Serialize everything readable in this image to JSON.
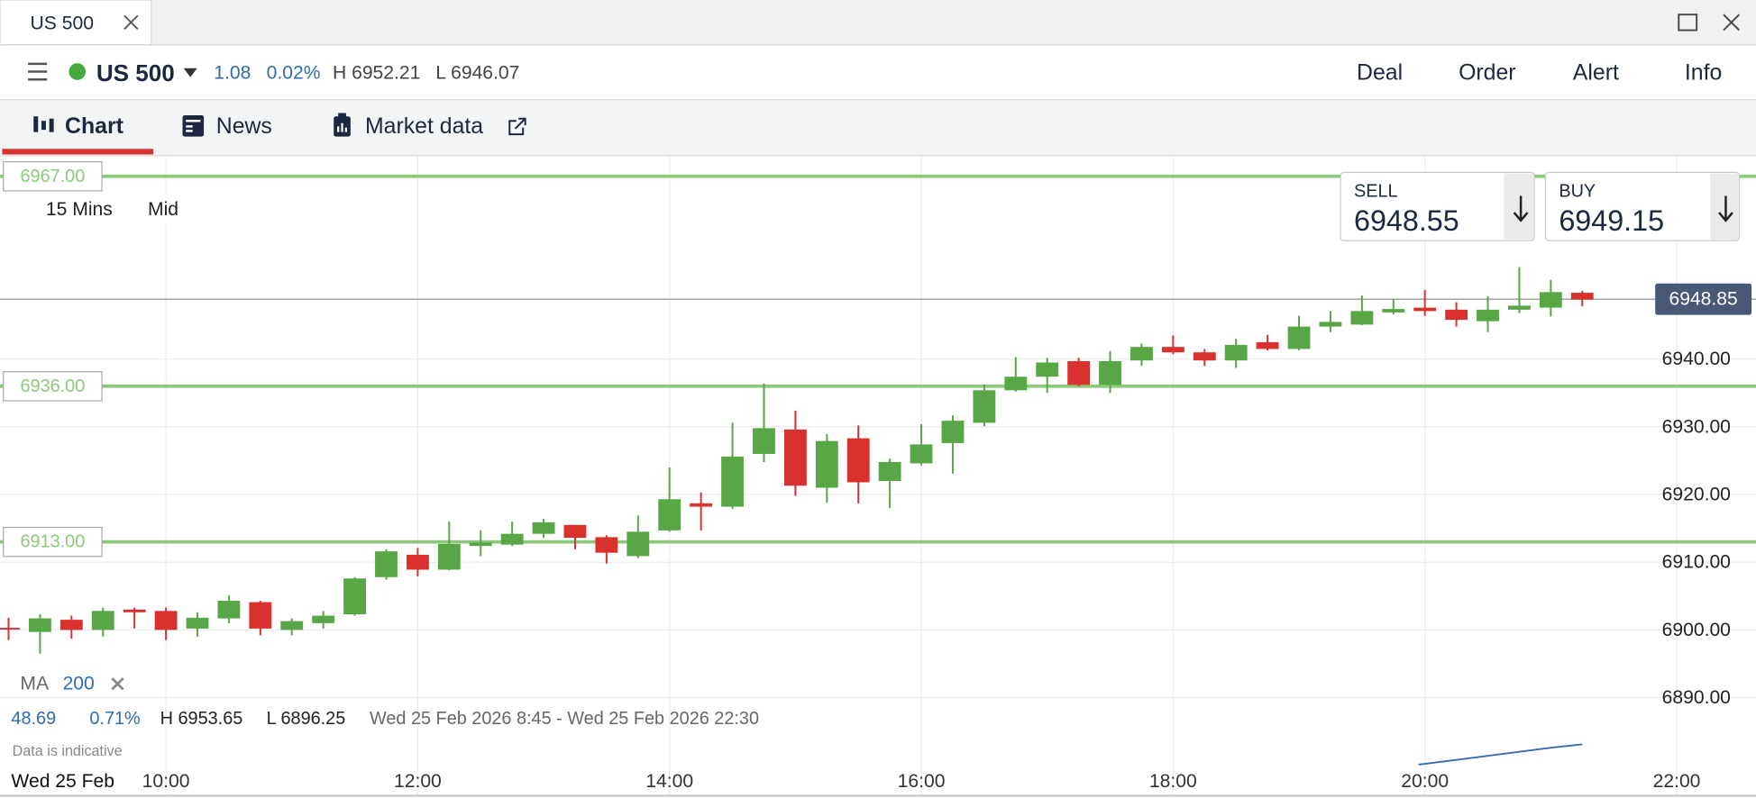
{
  "window": {
    "tab": "US 500"
  },
  "header": {
    "instrument": "US 500",
    "change": "1.08",
    "change_pct": "0.02%",
    "high": "H 6952.21",
    "low": "L 6946.07",
    "actions": [
      "Deal",
      "Order",
      "Alert",
      "Info"
    ]
  },
  "tabs": [
    "Chart",
    "News",
    "Market data"
  ],
  "quote": {
    "sell_label": "SELL",
    "sell": "6948.55",
    "buy_label": "BUY",
    "buy": "6949.15"
  },
  "chart_data": {
    "type": "candlestick",
    "interval": "15 Mins",
    "price_type": "Mid",
    "x": [
      8.75,
      9,
      9.25,
      9.5,
      9.75,
      10,
      10.25,
      10.5,
      10.75,
      11,
      11.25,
      11.5,
      11.75,
      12,
      12.25,
      12.5,
      12.75,
      13,
      13.25,
      13.5,
      13.75,
      14,
      14.25,
      14.5,
      14.75,
      15,
      15.25,
      15.5,
      15.75,
      16,
      16.25,
      16.5,
      16.75,
      17,
      17.25,
      17.5,
      17.75,
      18,
      18.25,
      18.5,
      18.75,
      19,
      19.25,
      19.5,
      19.75,
      20,
      20.25,
      20.5,
      20.75,
      21,
      21.25
    ],
    "open": [
      6900.3,
      6899.7,
      6901.5,
      6900.0,
      6903.0,
      6902.8,
      6900.2,
      6901.7,
      6904.1,
      6900.0,
      6901.0,
      6902.3,
      6907.8,
      6911.1,
      6908.9,
      6912.4,
      6912.6,
      6914.2,
      6915.5,
      6913.7,
      6910.9,
      6914.7,
      6918.7,
      6918.2,
      6926.0,
      6929.6,
      6921.0,
      6928.3,
      6922.0,
      6924.6,
      6927.6,
      6930.6,
      6935.4,
      6937.4,
      6939.7,
      6936.2,
      6939.8,
      6941.8,
      6941.0,
      6939.8,
      6942.5,
      6941.5,
      6944.8,
      6945.1,
      6946.9,
      6947.6,
      6947.3,
      6945.6,
      6947.3,
      6947.6,
      6949.8
    ],
    "high": [
      6901.8,
      6902.3,
      6902.1,
      6903.3,
      6903.3,
      6903.3,
      6902.6,
      6905.1,
      6904.3,
      6901.7,
      6902.8,
      6907.8,
      6911.9,
      6912.1,
      6916.0,
      6914.7,
      6916.0,
      6916.4,
      6915.5,
      6914.0,
      6916.9,
      6924.0,
      6920.3,
      6930.6,
      6936.4,
      6932.4,
      6928.9,
      6930.2,
      6925.3,
      6930.4,
      6931.7,
      6936.2,
      6940.3,
      6940.2,
      6940.2,
      6941.2,
      6942.3,
      6943.5,
      6941.5,
      6943.0,
      6943.6,
      6946.4,
      6947.1,
      6949.4,
      6948.9,
      6950.2,
      6948.4,
      6949.3,
      6953.6,
      6951.7,
      6950.1
    ],
    "low": [
      6898.5,
      6896.5,
      6898.7,
      6899.0,
      6900.2,
      6898.5,
      6899.0,
      6901.0,
      6899.2,
      6899.2,
      6900.2,
      6902.1,
      6907.4,
      6907.9,
      6908.8,
      6910.9,
      6912.4,
      6913.6,
      6911.9,
      6909.8,
      6910.6,
      6914.5,
      6914.7,
      6917.9,
      6924.8,
      6919.8,
      6918.8,
      6918.7,
      6918.0,
      6924.3,
      6923.1,
      6930.1,
      6935.2,
      6935.0,
      6936.0,
      6935.0,
      6939.0,
      6940.7,
      6939.0,
      6938.7,
      6941.3,
      6941.3,
      6944.0,
      6945.0,
      6946.6,
      6946.4,
      6944.8,
      6944.0,
      6946.8,
      6946.3,
      6947.8
    ],
    "close": [
      6900.1,
      6901.7,
      6900.0,
      6902.8,
      6902.6,
      6900.0,
      6901.8,
      6904.3,
      6900.2,
      6901.3,
      6902.1,
      6907.6,
      6911.6,
      6908.9,
      6912.7,
      6912.9,
      6914.2,
      6915.9,
      6913.6,
      6911.4,
      6914.5,
      6919.3,
      6918.2,
      6925.6,
      6929.8,
      6921.3,
      6927.9,
      6921.8,
      6924.8,
      6927.4,
      6930.9,
      6935.4,
      6937.4,
      6939.5,
      6936.2,
      6939.7,
      6941.8,
      6941.0,
      6939.8,
      6942.1,
      6941.5,
      6944.8,
      6945.5,
      6947.1,
      6947.4,
      6947.1,
      6945.8,
      6947.3,
      6947.9,
      6949.9,
      6948.8
    ],
    "up_color": "#58a646",
    "down_color": "#d9322e",
    "xlim": [
      8.682,
      22.63
    ],
    "xticks": [
      {
        "value": 10,
        "label": "10:00"
      },
      {
        "value": 12,
        "label": "12:00"
      },
      {
        "value": 14,
        "label": "14:00"
      },
      {
        "value": 16,
        "label": "16:00"
      },
      {
        "value": 18,
        "label": "18:00"
      },
      {
        "value": 20,
        "label": "20:00"
      },
      {
        "value": 22,
        "label": "22:00"
      }
    ],
    "ylim": [
      6879.8,
      6969.9
    ],
    "yticks": [
      {
        "value": 6890,
        "label": "6890.00"
      },
      {
        "value": 6900,
        "label": "6900.00"
      },
      {
        "value": 6910,
        "label": "6910.00"
      },
      {
        "value": 6920,
        "label": "6920.00"
      },
      {
        "value": 6930,
        "label": "6930.00"
      },
      {
        "value": 6940,
        "label": "6940.00"
      }
    ],
    "grid": true,
    "date_label": "Wed 25 Feb",
    "levels": [
      {
        "value": 6967,
        "label": "6967.00"
      },
      {
        "value": 6936,
        "label": "6936.00"
      },
      {
        "value": 6913,
        "label": "6913.00"
      }
    ],
    "level_color": "#8cc97a",
    "last_price": {
      "value": 6948.85,
      "label": "6948.85"
    },
    "ma": {
      "name": "MA",
      "period": "200",
      "color": "#3a6cb0",
      "x": [
        19.95,
        20.25,
        20.5,
        20.75,
        21,
        21.25
      ],
      "values": [
        6880.1,
        6880.8,
        6881.4,
        6882.0,
        6882.6,
        6883.1
      ]
    },
    "stats": {
      "change": "48.69",
      "change_pct": "0.71%",
      "high": "H 6953.65",
      "low": "L 6896.25",
      "range": "Wed 25 Feb 2026 8:45 - Wed 25 Feb 2026 22:30"
    },
    "disclaimer": "Data is indicative"
  }
}
